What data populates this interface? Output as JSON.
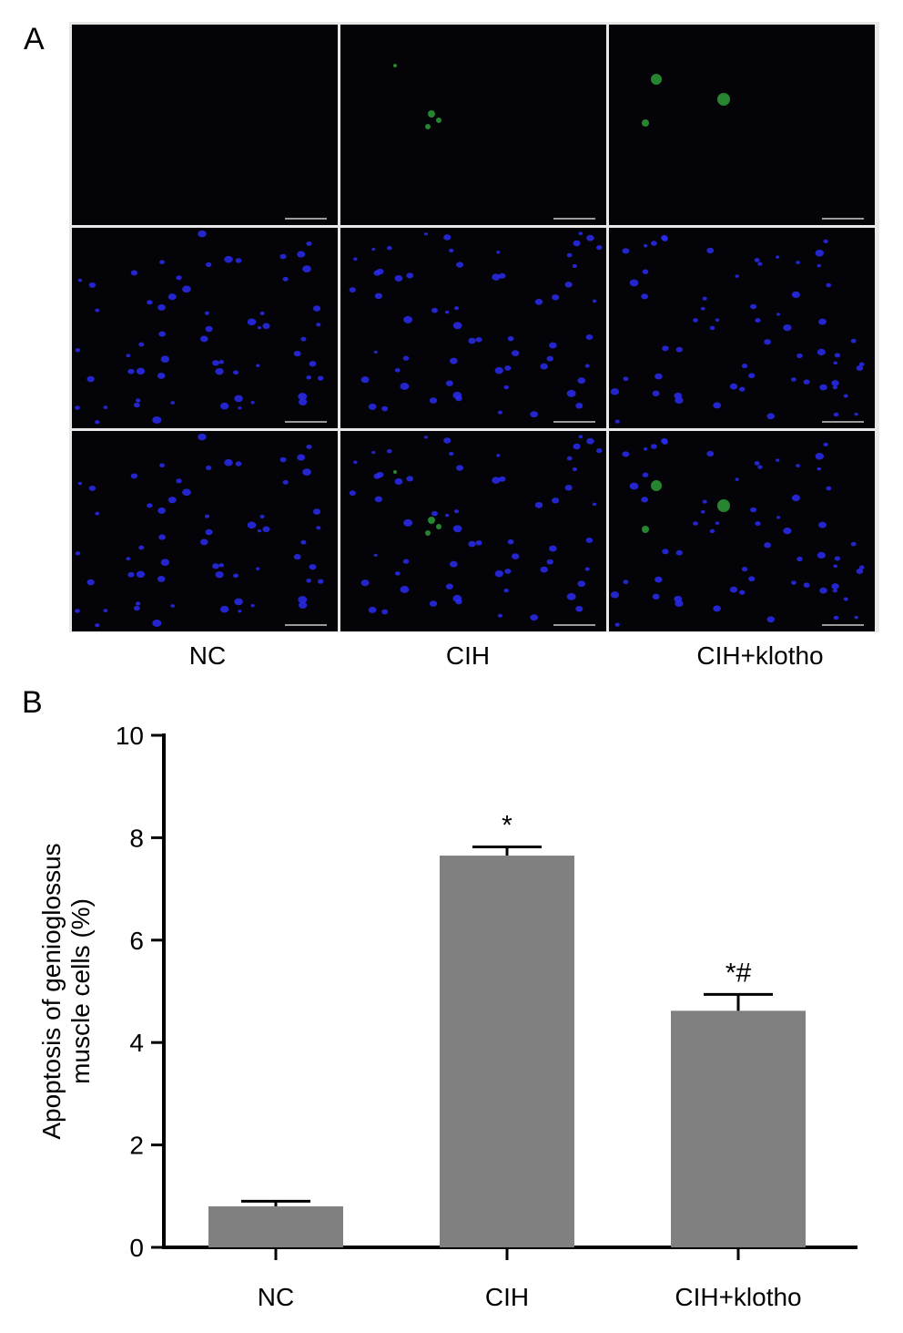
{
  "panel_a": {
    "label": "A",
    "columns": [
      "NC",
      "CIH",
      "CIH+klotho"
    ]
  },
  "panel_b": {
    "label": "B"
  },
  "chart_data": {
    "type": "bar",
    "categories": [
      "NC",
      "CIH",
      "CIH+klotho"
    ],
    "values": [
      0.8,
      7.65,
      4.62
    ],
    "errors": [
      0.1,
      0.17,
      0.32
    ],
    "annotations": [
      "",
      "*",
      "*#"
    ],
    "ylabel_lines": [
      "Apoptosis of genioglossus",
      "muscle cells (%)"
    ],
    "xlabel": "",
    "ylim": [
      0,
      10
    ],
    "yticks": [
      0,
      2,
      4,
      6,
      8,
      10
    ],
    "bar_color": "#808080",
    "grid": false,
    "legend": "none"
  },
  "colors": {
    "nucleus_blue": "#2a2cf0",
    "tunel_green": "#3fdc4a",
    "tile_background": "#030308"
  }
}
